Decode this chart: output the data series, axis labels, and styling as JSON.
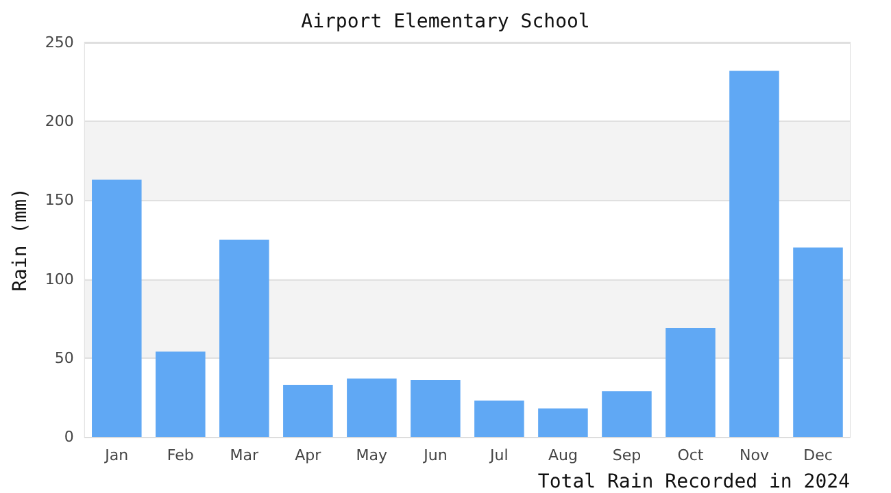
{
  "chart_data": {
    "type": "bar",
    "title": "Airport Elementary School",
    "xlabel": "Total Rain Recorded in 2024",
    "ylabel": "Rain (mm)",
    "categories": [
      "Jan",
      "Feb",
      "Mar",
      "Apr",
      "May",
      "Jun",
      "Jul",
      "Aug",
      "Sep",
      "Oct",
      "Nov",
      "Dec"
    ],
    "values": [
      163,
      54,
      125,
      33,
      37,
      36,
      23,
      18,
      29,
      69,
      232,
      120
    ],
    "color": "#60a8f4",
    "ylim": [
      0,
      250
    ],
    "yticks": [
      0,
      50,
      100,
      150,
      200,
      250
    ],
    "grid": "y"
  }
}
